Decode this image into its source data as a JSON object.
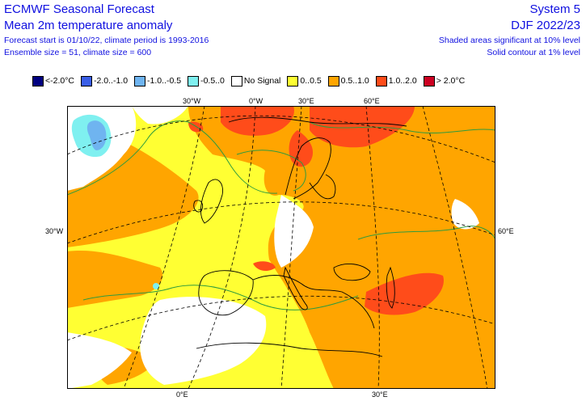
{
  "header": {
    "title_left": "ECMWF Seasonal Forecast",
    "subtitle_left": "Mean 2m temperature anomaly",
    "line3_left": "Forecast start is 01/10/22, climate period is 1993-2016",
    "line4_left": "Ensemble size = 51, climate size = 600",
    "title_right": "System 5",
    "subtitle_right": "DJF 2022/23",
    "line3_right": "Shaded areas significant at 10% level",
    "line4_right": "Solid contour at 1% level"
  },
  "legend": [
    {
      "label": "<-2.0°C",
      "color": "#000080"
    },
    {
      "label": "-2.0..-1.0",
      "color": "#3a5ee6"
    },
    {
      "label": "-1.0..-0.5",
      "color": "#6fb4f0"
    },
    {
      "label": "-0.5..0",
      "color": "#7ff0f0"
    },
    {
      "label": "No Signal",
      "color": "#ffffff"
    },
    {
      "label": "0..0.5",
      "color": "#ffff33"
    },
    {
      "label": "0.5..1.0",
      "color": "#ffa500"
    },
    {
      "label": "1.0..2.0",
      "color": "#ff4c1a"
    },
    {
      "label": "> 2.0°C",
      "color": "#cc0022"
    }
  ],
  "axis_labels": {
    "top_30w": "30°W",
    "top_0w": "0°W",
    "top_30e": "30°E",
    "top_60e": "60°E",
    "left_30w": "30°W",
    "right_60e": "60°E",
    "bottom_0e": "0°E",
    "bottom_30e": "30°E"
  }
}
